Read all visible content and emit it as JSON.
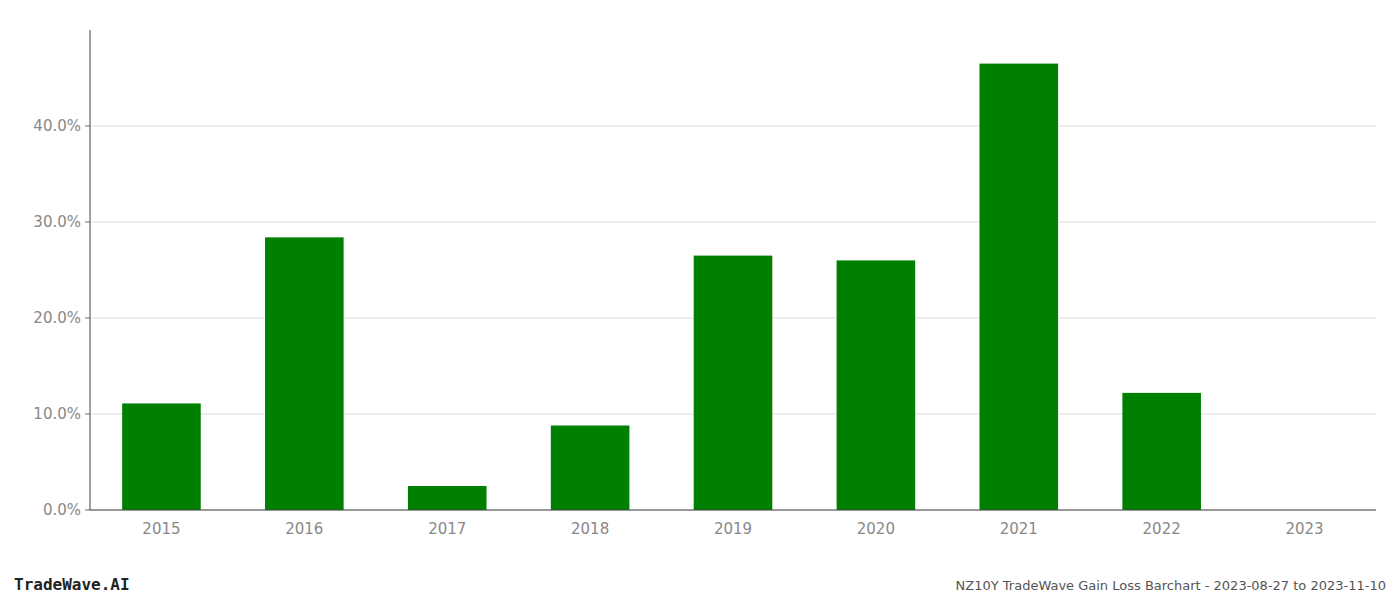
{
  "chart_data": {
    "type": "bar",
    "categories": [
      "2015",
      "2016",
      "2017",
      "2018",
      "2019",
      "2020",
      "2021",
      "2022",
      "2023"
    ],
    "values": [
      0.111,
      0.284,
      0.025,
      0.088,
      0.265,
      0.26,
      0.465,
      0.122,
      0.0
    ],
    "color": "#008000",
    "ylim": [
      0.0,
      0.5
    ],
    "yticks": [
      {
        "value": 0.0,
        "label": "0.0%"
      },
      {
        "value": 0.1,
        "label": "10.0%"
      },
      {
        "value": 0.2,
        "label": "20.0%"
      },
      {
        "value": 0.3,
        "label": "30.0%"
      },
      {
        "value": 0.4,
        "label": "40.0%"
      }
    ],
    "grid": true,
    "annotations": [
      "TradeWave.AI",
      "NZ10Y TradeWave Gain Loss Barchart - 2023-08-27 to 2023-11-10"
    ]
  }
}
